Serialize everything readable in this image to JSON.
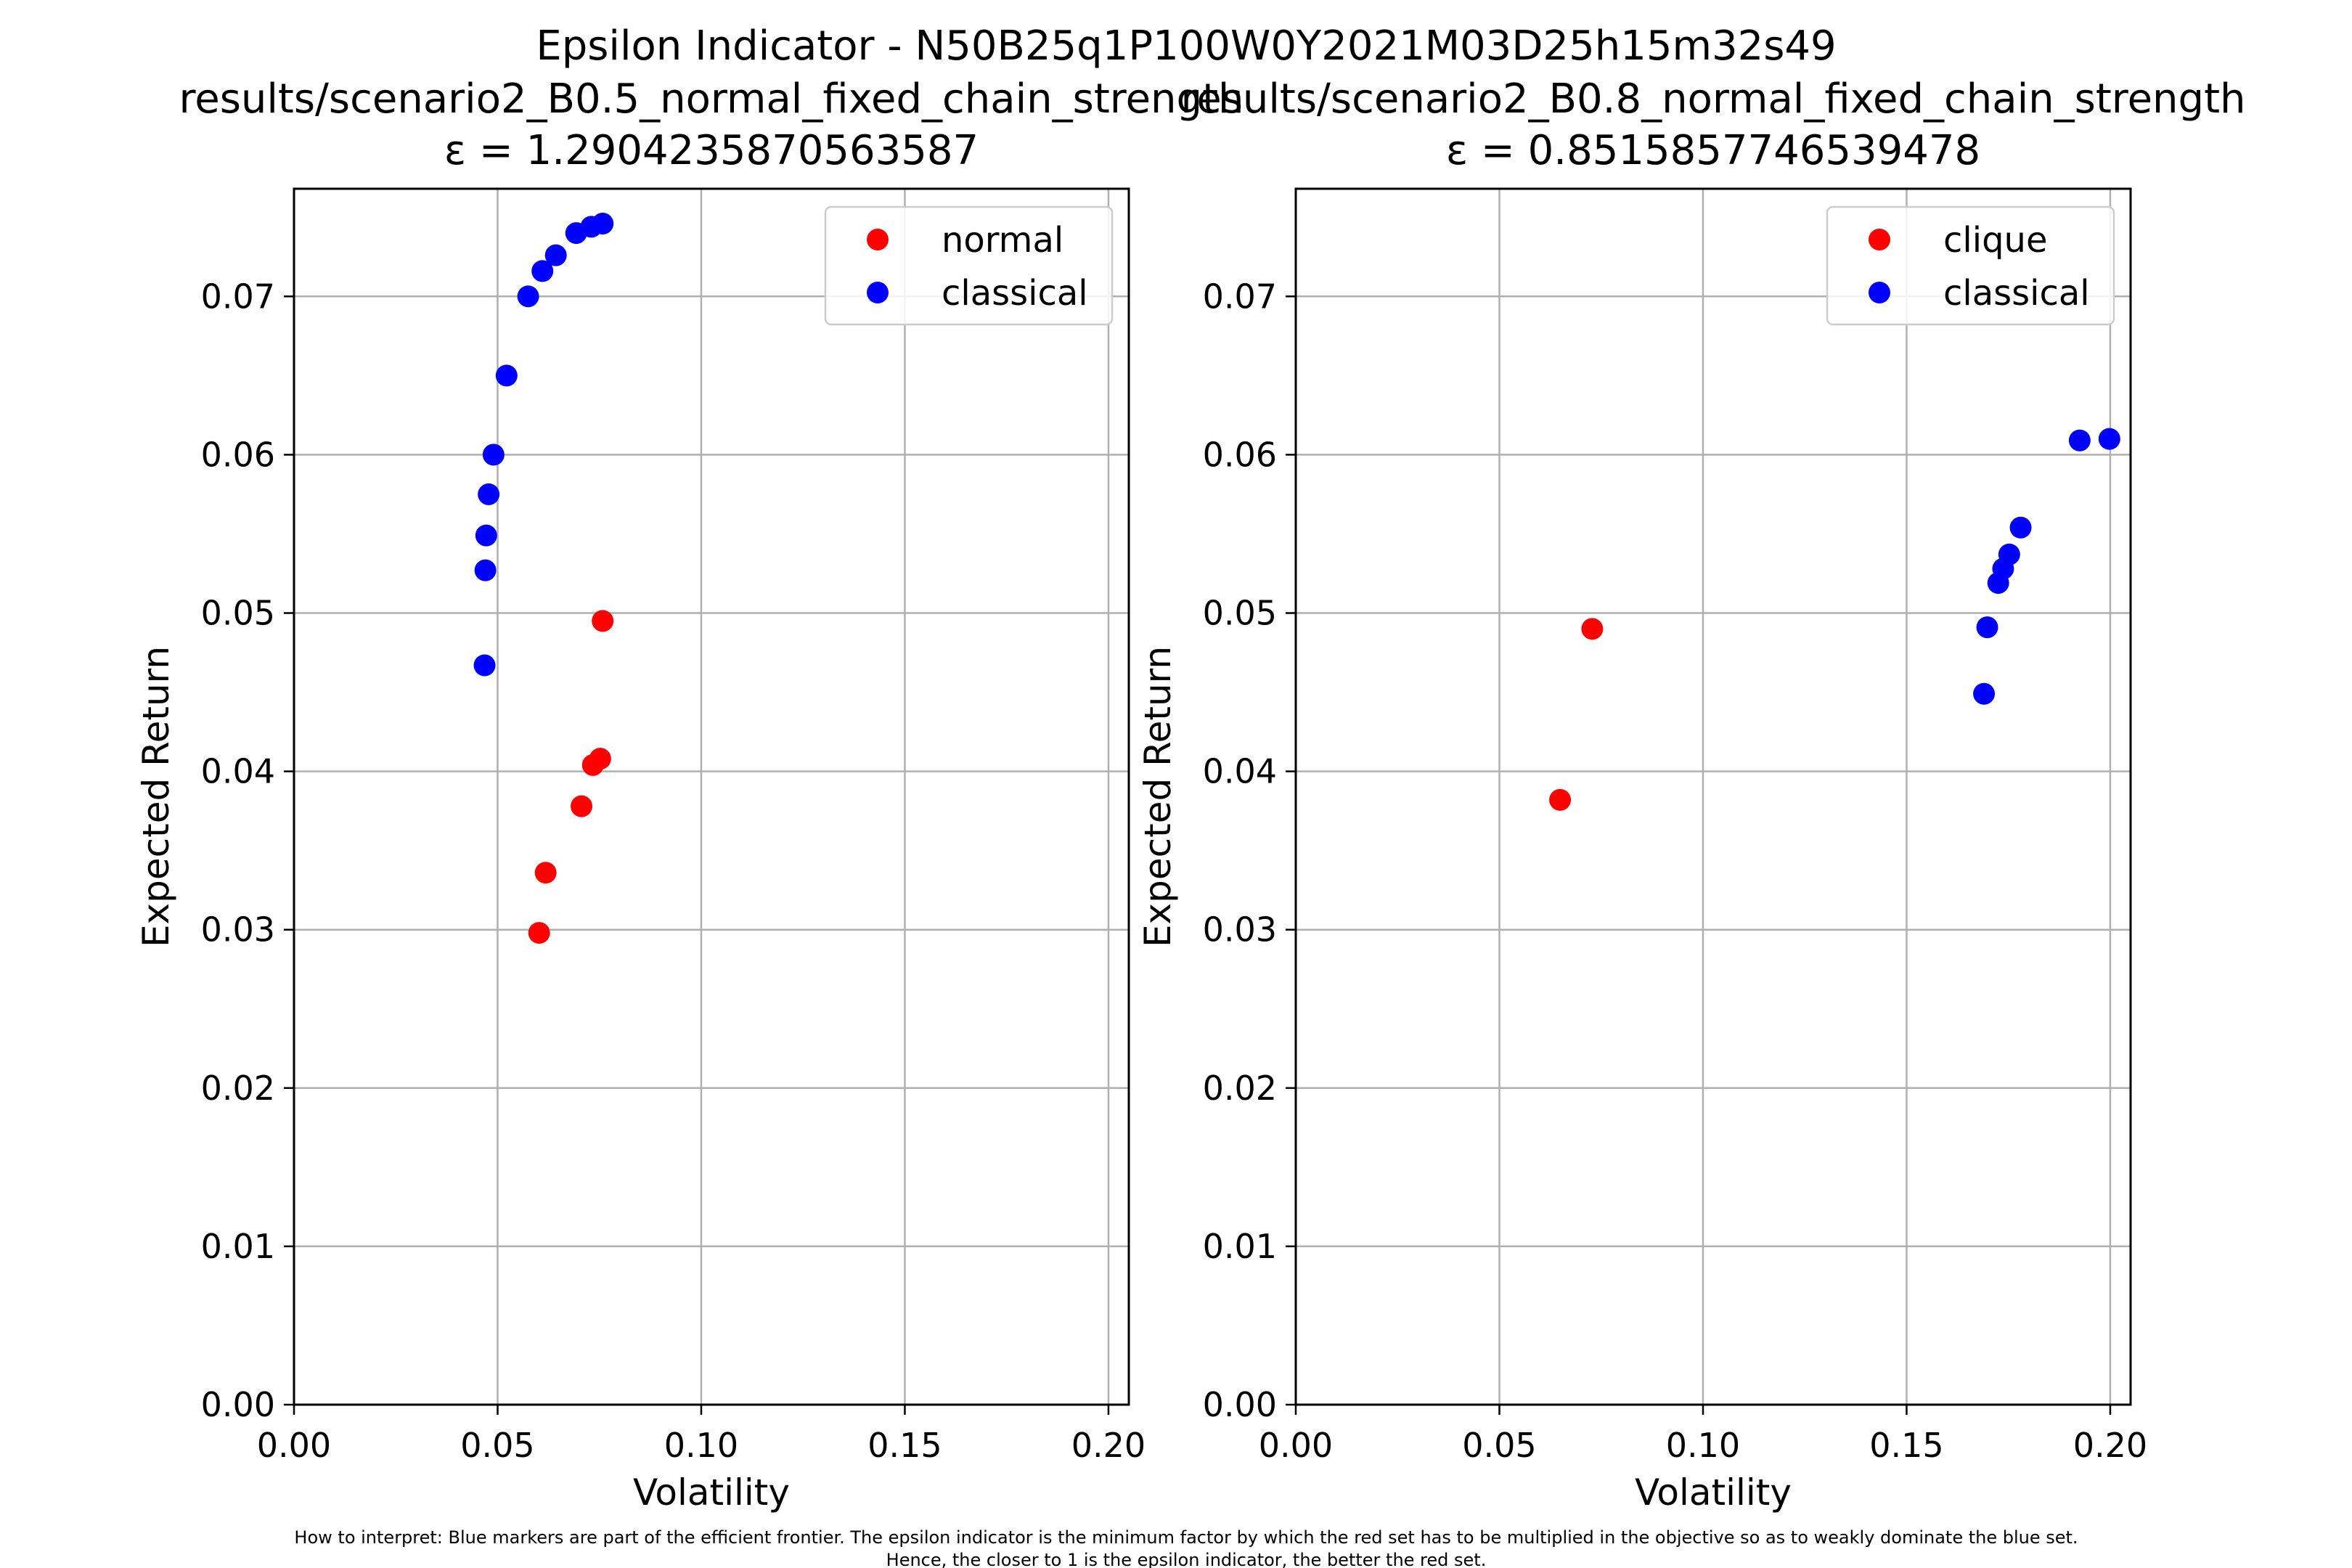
{
  "suptitle": "Epsilon Indicator - N50B25q1P100W0Y2021M03D25h15m32s49",
  "footnote": {
    "line1": "How to interpret: Blue markers are part of the efficient frontier. The epsilon indicator is the minimum factor by which the red set has to be multiplied in the objective so as to weakly dominate the blue set.",
    "line2": "Hence, the closer to 1 is the epsilon indicator, the better the red set."
  },
  "colors": {
    "red_set": "#ff0000",
    "blue_set": "#0000ff",
    "grid": "#b0b0b0"
  },
  "chart_data": [
    {
      "type": "scatter",
      "title": "results/scenario2_B0.5_normal_fixed_chain_strength",
      "subtitle": "ε = 1.2904235870563587",
      "xlabel": "Volatility",
      "ylabel": "Expected Return",
      "xlim": [
        0.0,
        0.205
      ],
      "ylim": [
        0.0,
        0.0768
      ],
      "xticks": [
        0.0,
        0.05,
        0.1,
        0.15,
        0.2
      ],
      "xtick_labels": [
        "0.00",
        "0.05",
        "0.10",
        "0.15",
        "0.20"
      ],
      "yticks": [
        0.0,
        0.01,
        0.02,
        0.03,
        0.04,
        0.05,
        0.06,
        0.07
      ],
      "ytick_labels": [
        "0.00",
        "0.01",
        "0.02",
        "0.03",
        "0.04",
        "0.05",
        "0.06",
        "0.07"
      ],
      "grid": true,
      "legend_position": "top-right",
      "series": [
        {
          "name": "normal",
          "color": "#ff0000",
          "points": [
            [
              0.0602,
              0.0298
            ],
            [
              0.0618,
              0.0336
            ],
            [
              0.0706,
              0.0378
            ],
            [
              0.0734,
              0.0404
            ],
            [
              0.0752,
              0.0408
            ],
            [
              0.0758,
              0.0495
            ]
          ]
        },
        {
          "name": "classical",
          "color": "#0000ff",
          "points": [
            [
              0.0468,
              0.0467
            ],
            [
              0.047,
              0.0527
            ],
            [
              0.0472,
              0.0549
            ],
            [
              0.0478,
              0.0575
            ],
            [
              0.049,
              0.06
            ],
            [
              0.0522,
              0.065
            ],
            [
              0.0575,
              0.07
            ],
            [
              0.061,
              0.0716
            ],
            [
              0.0643,
              0.0726
            ],
            [
              0.0693,
              0.074
            ],
            [
              0.073,
              0.0744
            ],
            [
              0.0758,
              0.0746
            ]
          ]
        }
      ]
    },
    {
      "type": "scatter",
      "title": "results/scenario2_B0.8_normal_fixed_chain_strength",
      "subtitle": "ε = 0.8515857746539478",
      "xlabel": "Volatility",
      "ylabel": "Expected Return",
      "xlim": [
        0.0,
        0.205
      ],
      "ylim": [
        0.0,
        0.0768
      ],
      "xticks": [
        0.0,
        0.05,
        0.1,
        0.15,
        0.2
      ],
      "xtick_labels": [
        "0.00",
        "0.05",
        "0.10",
        "0.15",
        "0.20"
      ],
      "yticks": [
        0.0,
        0.01,
        0.02,
        0.03,
        0.04,
        0.05,
        0.06,
        0.07
      ],
      "ytick_labels": [
        "0.00",
        "0.01",
        "0.02",
        "0.03",
        "0.04",
        "0.05",
        "0.06",
        "0.07"
      ],
      "grid": true,
      "legend_position": "top-right",
      "series": [
        {
          "name": "clique",
          "color": "#ff0000",
          "points": [
            [
              0.0649,
              0.0382
            ],
            [
              0.0728,
              0.049
            ]
          ]
        },
        {
          "name": "classical",
          "color": "#0000ff",
          "points": [
            [
              0.169,
              0.0449
            ],
            [
              0.1698,
              0.0491
            ],
            [
              0.1725,
              0.0519
            ],
            [
              0.1737,
              0.0528
            ],
            [
              0.1752,
              0.0537
            ],
            [
              0.178,
              0.0554
            ],
            [
              0.1925,
              0.0609
            ],
            [
              0.1998,
              0.061
            ]
          ]
        }
      ]
    }
  ]
}
